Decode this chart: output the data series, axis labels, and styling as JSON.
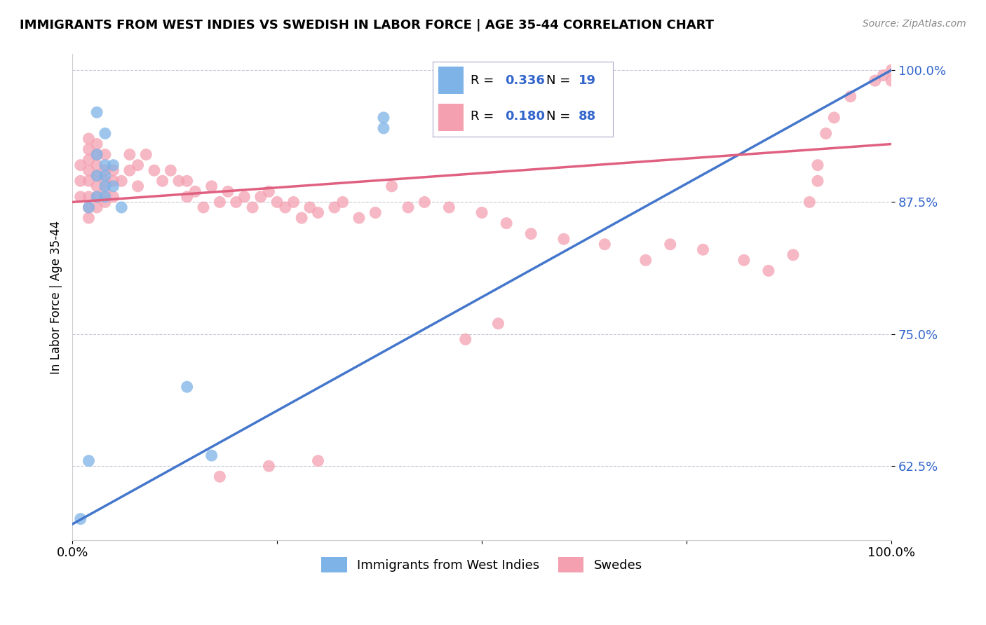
{
  "title": "IMMIGRANTS FROM WEST INDIES VS SWEDISH IN LABOR FORCE | AGE 35-44 CORRELATION CHART",
  "source": "Source: ZipAtlas.com",
  "ylabel": "In Labor Force | Age 35-44",
  "xlim": [
    0.0,
    1.0
  ],
  "ylim": [
    0.555,
    1.015
  ],
  "yticks": [
    0.625,
    0.75,
    0.875,
    1.0
  ],
  "ytick_labels": [
    "62.5%",
    "75.0%",
    "87.5%",
    "100.0%"
  ],
  "xticks": [
    0.0,
    0.25,
    0.5,
    0.75,
    1.0
  ],
  "xtick_labels": [
    "0.0%",
    "",
    "",
    "",
    "100.0%"
  ],
  "blue_R": 0.336,
  "blue_N": 19,
  "pink_R": 0.18,
  "pink_N": 88,
  "blue_color": "#7EB3E8",
  "pink_color": "#F4A0B0",
  "blue_line_color": "#4477CC",
  "pink_line_color": "#E06080",
  "blue_label": "Immigrants from West Indies",
  "pink_label": "Swedes",
  "legend_R_color": "#3366CC",
  "blue_scatter_x": [
    0.01,
    0.02,
    0.02,
    0.03,
    0.03,
    0.03,
    0.03,
    0.04,
    0.04,
    0.04,
    0.04,
    0.04,
    0.05,
    0.05,
    0.06,
    0.14,
    0.17,
    0.38,
    0.38
  ],
  "blue_scatter_y": [
    0.575,
    0.63,
    0.87,
    0.88,
    0.9,
    0.92,
    0.96,
    0.88,
    0.89,
    0.9,
    0.91,
    0.94,
    0.89,
    0.91,
    0.87,
    0.7,
    0.635,
    0.955,
    0.945
  ],
  "pink_scatter_x": [
    0.01,
    0.01,
    0.01,
    0.02,
    0.02,
    0.02,
    0.02,
    0.02,
    0.02,
    0.02,
    0.02,
    0.03,
    0.03,
    0.03,
    0.03,
    0.03,
    0.03,
    0.03,
    0.04,
    0.04,
    0.04,
    0.04,
    0.04,
    0.05,
    0.05,
    0.05,
    0.06,
    0.07,
    0.07,
    0.08,
    0.08,
    0.09,
    0.1,
    0.11,
    0.12,
    0.13,
    0.14,
    0.14,
    0.15,
    0.16,
    0.17,
    0.18,
    0.19,
    0.2,
    0.21,
    0.22,
    0.23,
    0.24,
    0.25,
    0.26,
    0.27,
    0.28,
    0.29,
    0.3,
    0.32,
    0.33,
    0.35,
    0.37,
    0.39,
    0.41,
    0.43,
    0.46,
    0.5,
    0.53,
    0.56,
    0.6,
    0.65,
    0.7,
    0.73,
    0.77,
    0.82,
    0.85,
    0.88,
    0.9,
    0.91,
    0.91,
    0.92,
    0.93,
    0.95,
    0.98,
    0.99,
    1.0,
    1.0,
    0.48,
    0.52,
    0.3,
    0.24,
    0.18
  ],
  "pink_scatter_y": [
    0.88,
    0.895,
    0.91,
    0.86,
    0.87,
    0.88,
    0.895,
    0.905,
    0.915,
    0.925,
    0.935,
    0.87,
    0.88,
    0.89,
    0.9,
    0.91,
    0.92,
    0.93,
    0.875,
    0.885,
    0.895,
    0.905,
    0.92,
    0.88,
    0.895,
    0.905,
    0.895,
    0.905,
    0.92,
    0.89,
    0.91,
    0.92,
    0.905,
    0.895,
    0.905,
    0.895,
    0.88,
    0.895,
    0.885,
    0.87,
    0.89,
    0.875,
    0.885,
    0.875,
    0.88,
    0.87,
    0.88,
    0.885,
    0.875,
    0.87,
    0.875,
    0.86,
    0.87,
    0.865,
    0.87,
    0.875,
    0.86,
    0.865,
    0.89,
    0.87,
    0.875,
    0.87,
    0.865,
    0.855,
    0.845,
    0.84,
    0.835,
    0.82,
    0.835,
    0.83,
    0.82,
    0.81,
    0.825,
    0.875,
    0.895,
    0.91,
    0.94,
    0.955,
    0.975,
    0.99,
    0.995,
    0.99,
    1.0,
    0.745,
    0.76,
    0.63,
    0.625,
    0.615
  ]
}
